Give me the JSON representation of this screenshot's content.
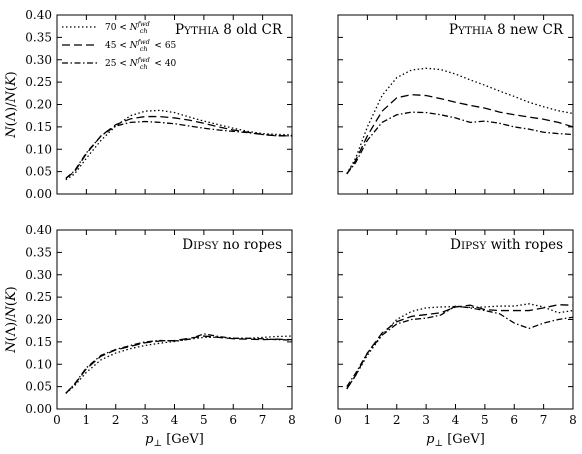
{
  "chart_data": {
    "type": "line",
    "xlim": [
      0,
      8
    ],
    "ylim": [
      0,
      0.4
    ],
    "xticks": [
      "0",
      "1",
      "2",
      "3",
      "4",
      "5",
      "6",
      "7",
      "8"
    ],
    "yticks": [
      "0.00",
      "0.05",
      "0.10",
      "0.15",
      "0.20",
      "0.25",
      "0.30",
      "0.35",
      "0.40"
    ],
    "xlabel": "p⊥ [GeV]",
    "ylabel": "N(Λ)/N(K)",
    "grid": false,
    "legend": {
      "placement": "top-left of first panel",
      "entries": [
        {
          "style": "dotted",
          "label": "70 < N_ch^fwd"
        },
        {
          "style": "dashed",
          "label": "45 < N_ch^fwd < 65"
        },
        {
          "style": "dashdot",
          "label": "25 < N_ch^fwd < 40"
        }
      ]
    },
    "panels": [
      {
        "title": "PYTHIA 8 old CR",
        "series": [
          {
            "style": "dotted",
            "x": [
              0.3,
              0.6,
              1,
              1.5,
              2,
              2.5,
              3,
              3.5,
              4,
              4.5,
              5,
              5.5,
              6,
              6.5,
              7,
              7.5,
              8
            ],
            "y": [
              0.032,
              0.045,
              0.08,
              0.12,
              0.152,
              0.175,
              0.185,
              0.187,
              0.182,
              0.172,
              0.163,
              0.155,
              0.147,
              0.14,
              0.135,
              0.133,
              0.132
            ]
          },
          {
            "style": "dashed",
            "x": [
              0.3,
              0.6,
              1,
              1.5,
              2,
              2.5,
              3,
              3.5,
              4,
              4.5,
              5,
              5.5,
              6,
              6.5,
              7,
              7.5,
              8
            ],
            "y": [
              0.035,
              0.05,
              0.09,
              0.13,
              0.155,
              0.168,
              0.173,
              0.173,
              0.17,
              0.165,
              0.158,
              0.15,
              0.143,
              0.138,
              0.133,
              0.13,
              0.13
            ]
          },
          {
            "style": "dashdot",
            "x": [
              0.3,
              0.6,
              1,
              1.5,
              2,
              2.5,
              3,
              3.5,
              4,
              4.5,
              5,
              5.5,
              6,
              6.5,
              7,
              7.5,
              8
            ],
            "y": [
              0.035,
              0.052,
              0.092,
              0.13,
              0.152,
              0.16,
              0.162,
              0.16,
              0.157,
              0.152,
              0.147,
              0.143,
              0.14,
              0.137,
              0.133,
              0.13,
              0.13
            ]
          }
        ]
      },
      {
        "title": "PYTHIA 8 new CR",
        "series": [
          {
            "style": "dotted",
            "x": [
              0.3,
              0.6,
              1,
              1.5,
              2,
              2.5,
              3,
              3.5,
              4,
              4.5,
              5,
              5.5,
              6,
              6.5,
              7,
              7.5,
              8
            ],
            "y": [
              0.045,
              0.08,
              0.15,
              0.22,
              0.26,
              0.277,
              0.281,
              0.278,
              0.268,
              0.255,
              0.243,
              0.23,
              0.218,
              0.205,
              0.195,
              0.186,
              0.18
            ]
          },
          {
            "style": "dashed",
            "x": [
              0.3,
              0.6,
              1,
              1.5,
              2,
              2.5,
              3,
              3.5,
              4,
              4.5,
              5,
              5.5,
              6,
              6.5,
              7,
              7.5,
              8
            ],
            "y": [
              0.045,
              0.075,
              0.13,
              0.185,
              0.215,
              0.222,
              0.22,
              0.213,
              0.205,
              0.198,
              0.192,
              0.183,
              0.177,
              0.172,
              0.167,
              0.16,
              0.15
            ]
          },
          {
            "style": "dashdot",
            "x": [
              0.3,
              0.6,
              1,
              1.5,
              2,
              2.5,
              3,
              3.5,
              4,
              4.5,
              5,
              5.5,
              6,
              6.5,
              7,
              7.5,
              8
            ],
            "y": [
              0.045,
              0.07,
              0.12,
              0.16,
              0.177,
              0.183,
              0.182,
              0.177,
              0.17,
              0.16,
              0.163,
              0.158,
              0.15,
              0.145,
              0.138,
              0.135,
              0.133
            ]
          }
        ]
      },
      {
        "title": "DIPSY no ropes",
        "series": [
          {
            "style": "dotted",
            "x": [
              0.3,
              0.6,
              1,
              1.5,
              2,
              2.5,
              3,
              3.5,
              4,
              4.5,
              5,
              5.5,
              6,
              6.5,
              7,
              7.5,
              8
            ],
            "y": [
              0.035,
              0.052,
              0.082,
              0.11,
              0.125,
              0.135,
              0.142,
              0.147,
              0.151,
              0.156,
              0.16,
              0.16,
              0.158,
              0.158,
              0.16,
              0.162,
              0.163
            ]
          },
          {
            "style": "dashed",
            "x": [
              0.3,
              0.6,
              1,
              1.5,
              2,
              2.5,
              3,
              3.5,
              4,
              4.5,
              5,
              5.5,
              6,
              6.5,
              7,
              7.5,
              8
            ],
            "y": [
              0.035,
              0.055,
              0.09,
              0.118,
              0.132,
              0.14,
              0.148,
              0.152,
              0.153,
              0.158,
              0.163,
              0.16,
              0.157,
              0.156,
              0.155,
              0.156,
              0.155
            ]
          },
          {
            "style": "dashdot",
            "x": [
              0.3,
              0.6,
              1,
              1.5,
              2,
              2.5,
              3,
              3.5,
              4,
              4.5,
              5,
              5.5,
              6,
              6.5,
              7,
              7.5,
              8
            ],
            "y": [
              0.035,
              0.056,
              0.092,
              0.12,
              0.133,
              0.142,
              0.15,
              0.153,
              0.152,
              0.156,
              0.168,
              0.162,
              0.158,
              0.158,
              0.157,
              0.155,
              0.154
            ]
          }
        ]
      },
      {
        "title": "DIPSY with ropes",
        "series": [
          {
            "style": "dotted",
            "x": [
              0.3,
              0.6,
              1,
              1.5,
              2,
              2.5,
              3,
              3.5,
              4,
              4.5,
              5,
              5.5,
              6,
              6.5,
              7,
              7.5,
              8
            ],
            "y": [
              0.045,
              0.075,
              0.12,
              0.165,
              0.2,
              0.218,
              0.226,
              0.228,
              0.229,
              0.227,
              0.228,
              0.23,
              0.23,
              0.235,
              0.228,
              0.215,
              0.22
            ]
          },
          {
            "style": "dashed",
            "x": [
              0.3,
              0.6,
              1,
              1.5,
              2,
              2.5,
              3,
              3.5,
              4,
              4.5,
              5,
              5.5,
              6,
              6.5,
              7,
              7.5,
              8
            ],
            "y": [
              0.045,
              0.075,
              0.125,
              0.17,
              0.195,
              0.207,
              0.211,
              0.215,
              0.228,
              0.232,
              0.222,
              0.22,
              0.22,
              0.22,
              0.226,
              0.233,
              0.232
            ]
          },
          {
            "style": "dashdot",
            "x": [
              0.3,
              0.6,
              1,
              1.5,
              2,
              2.5,
              3,
              3.5,
              4,
              4.5,
              5,
              5.5,
              6,
              6.5,
              7,
              7.5,
              8
            ],
            "y": [
              0.05,
              0.08,
              0.125,
              0.165,
              0.19,
              0.2,
              0.203,
              0.21,
              0.23,
              0.226,
              0.22,
              0.213,
              0.192,
              0.18,
              0.192,
              0.2,
              0.205
            ]
          }
        ]
      }
    ]
  }
}
